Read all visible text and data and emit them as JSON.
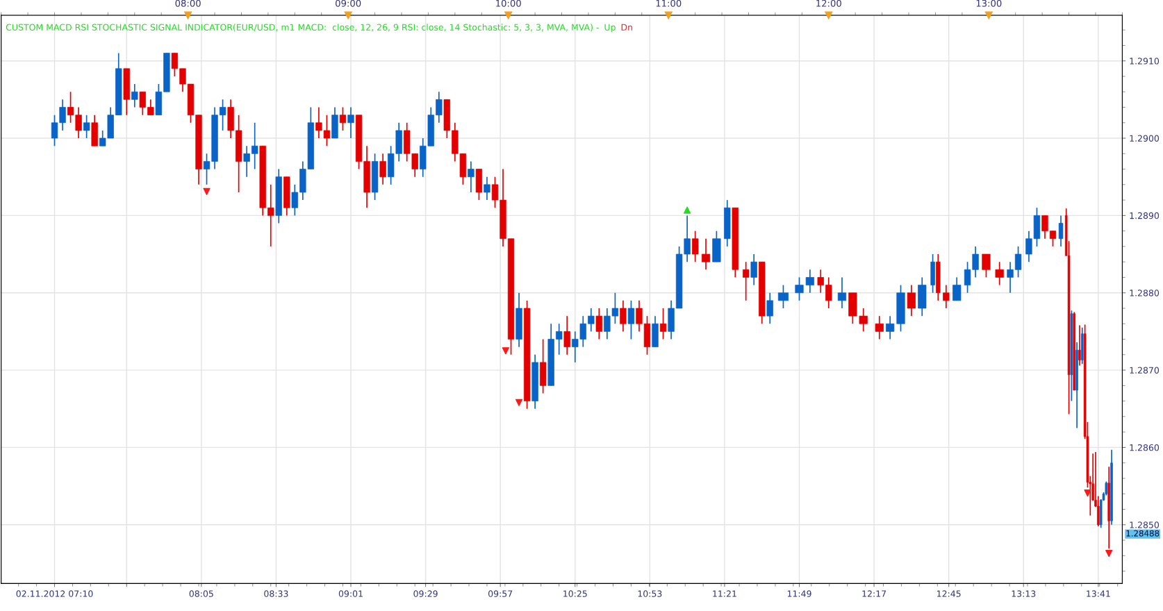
{
  "chart_data": {
    "type": "candlestick",
    "title": "CUSTOM MACD RSI STOCHASTIC SIGNAL INDICATOR(EUR/USD, m1 MACD:  close, 12, 26, 9 RSI: close, 14 Stochastic: 5, 3, 3, MVA, MVA) -",
    "x": [
      "2012-11-02T07:10",
      "2012-11-02T07:13",
      "2012-11-02T07:16",
      "2012-11-02T07:19",
      "2012-11-02T07:22",
      "2012-11-02T07:25",
      "2012-11-02T07:28",
      "2012-11-02T07:31",
      "2012-11-02T07:34",
      "2012-11-02T07:37",
      "2012-11-02T07:40",
      "2012-11-02T07:43",
      "2012-11-02T07:46",
      "2012-11-02T07:49",
      "2012-11-02T07:52",
      "2012-11-02T07:55",
      "2012-11-02T07:58",
      "2012-11-02T08:01",
      "2012-11-02T08:04",
      "2012-11-02T08:07",
      "2012-11-02T08:10",
      "2012-11-02T08:13",
      "2012-11-02T08:16",
      "2012-11-02T08:19",
      "2012-11-02T08:22",
      "2012-11-02T08:25",
      "2012-11-02T08:28",
      "2012-11-02T08:31",
      "2012-11-02T08:34",
      "2012-11-02T08:37",
      "2012-11-02T08:40",
      "2012-11-02T08:43",
      "2012-11-02T08:46",
      "2012-11-02T08:49",
      "2012-11-02T08:52",
      "2012-11-02T08:55",
      "2012-11-02T08:58",
      "2012-11-02T09:01",
      "2012-11-02T09:04",
      "2012-11-02T09:07",
      "2012-11-02T09:10",
      "2012-11-02T09:13",
      "2012-11-02T09:16",
      "2012-11-02T09:19",
      "2012-11-02T09:22",
      "2012-11-02T09:25",
      "2012-11-02T09:28",
      "2012-11-02T09:31",
      "2012-11-02T09:34",
      "2012-11-02T09:37",
      "2012-11-02T09:40",
      "2012-11-02T09:43",
      "2012-11-02T09:46",
      "2012-11-02T09:49",
      "2012-11-02T09:52",
      "2012-11-02T09:55",
      "2012-11-02T09:58",
      "2012-11-02T10:01",
      "2012-11-02T10:04",
      "2012-11-02T10:07",
      "2012-11-02T10:10",
      "2012-11-02T10:13",
      "2012-11-02T10:16",
      "2012-11-02T10:19",
      "2012-11-02T10:22",
      "2012-11-02T10:25",
      "2012-11-02T10:28",
      "2012-11-02T10:31",
      "2012-11-02T10:34",
      "2012-11-02T10:37",
      "2012-11-02T10:40",
      "2012-11-02T10:43",
      "2012-11-02T10:46",
      "2012-11-02T10:49",
      "2012-11-02T10:52",
      "2012-11-02T10:55",
      "2012-11-02T10:58",
      "2012-11-02T11:01",
      "2012-11-02T11:04",
      "2012-11-02T11:07",
      "2012-11-02T11:10",
      "2012-11-02T11:14",
      "2012-11-02T11:18",
      "2012-11-02T11:22",
      "2012-11-02T11:25",
      "2012-11-02T11:29",
      "2012-11-02T11:32",
      "2012-11-02T11:35",
      "2012-11-02T11:38",
      "2012-11-02T11:43",
      "2012-11-02T11:49",
      "2012-11-02T11:53",
      "2012-11-02T11:57",
      "2012-11-02T12:00",
      "2012-11-02T12:05",
      "2012-11-02T12:09",
      "2012-11-02T12:13",
      "2012-11-02T12:19",
      "2012-11-02T12:23",
      "2012-11-02T12:27",
      "2012-11-02T12:31",
      "2012-11-02T12:35",
      "2012-11-02T12:39",
      "2012-11-02T12:41",
      "2012-11-02T12:44",
      "2012-11-02T12:48",
      "2012-11-02T12:52",
      "2012-11-02T12:55",
      "2012-11-02T12:59",
      "2012-11-02T13:04",
      "2012-11-02T13:08",
      "2012-11-02T13:11",
      "2012-11-02T13:15",
      "2012-11-02T13:18",
      "2012-11-02T13:21",
      "2012-11-02T13:24",
      "2012-11-02T13:27",
      "2012-11-02T13:29",
      "2012-11-02T13:30",
      "2012-11-02T13:31",
      "2012-11-02T13:32",
      "2012-11-02T13:33",
      "2012-11-02T13:34",
      "2012-11-02T13:35",
      "2012-11-02T13:36",
      "2012-11-02T13:37",
      "2012-11-02T13:38",
      "2012-11-02T13:39",
      "2012-11-02T13:40",
      "2012-11-02T13:41",
      "2012-11-02T13:42",
      "2012-11-02T13:43",
      "2012-11-02T13:44",
      "2012-11-02T13:45",
      "2012-11-02T13:46"
    ],
    "ohlc": [
      [
        1.29,
        1.2903,
        1.2899,
        1.2902
      ],
      [
        1.2902,
        1.2905,
        1.2901,
        1.2904
      ],
      [
        1.2904,
        1.2906,
        1.2902,
        1.2903
      ],
      [
        1.2903,
        1.2904,
        1.29,
        1.2901
      ],
      [
        1.2901,
        1.2903,
        1.29,
        1.2902
      ],
      [
        1.2902,
        1.2903,
        1.2899,
        1.2899
      ],
      [
        1.2899,
        1.2901,
        1.2899,
        1.29
      ],
      [
        1.29,
        1.2904,
        1.29,
        1.2903
      ],
      [
        1.2903,
        1.2911,
        1.2903,
        1.2909
      ],
      [
        1.2909,
        1.2909,
        1.2903,
        1.2905
      ],
      [
        1.2905,
        1.2907,
        1.2904,
        1.2906
      ],
      [
        1.2906,
        1.2906,
        1.2903,
        1.2904
      ],
      [
        1.2904,
        1.2905,
        1.2903,
        1.2903
      ],
      [
        1.2903,
        1.2907,
        1.2903,
        1.2906
      ],
      [
        1.2906,
        1.2911,
        1.2906,
        1.2911
      ],
      [
        1.2911,
        1.2911,
        1.2908,
        1.2909
      ],
      [
        1.2909,
        1.2909,
        1.2906,
        1.2907
      ],
      [
        1.2907,
        1.2907,
        1.2902,
        1.2903
      ],
      [
        1.2903,
        1.2903,
        1.2894,
        1.2896
      ],
      [
        1.2896,
        1.2898,
        1.2894,
        1.2897
      ],
      [
        1.2897,
        1.2904,
        1.2896,
        1.2903
      ],
      [
        1.2903,
        1.2905,
        1.2901,
        1.2904
      ],
      [
        1.2904,
        1.2905,
        1.29,
        1.2901
      ],
      [
        1.2901,
        1.2903,
        1.2893,
        1.2897
      ],
      [
        1.2897,
        1.2899,
        1.2895,
        1.2898
      ],
      [
        1.2898,
        1.2902,
        1.2896,
        1.2899
      ],
      [
        1.2899,
        1.2899,
        1.289,
        1.2891
      ],
      [
        1.2891,
        1.2894,
        1.2886,
        1.289
      ],
      [
        1.289,
        1.2896,
        1.2889,
        1.2895
      ],
      [
        1.2895,
        1.2895,
        1.289,
        1.2891
      ],
      [
        1.2891,
        1.2894,
        1.289,
        1.2893
      ],
      [
        1.2893,
        1.2897,
        1.2892,
        1.2896
      ],
      [
        1.2896,
        1.2904,
        1.2896,
        1.2902
      ],
      [
        1.2902,
        1.2904,
        1.29,
        1.2901
      ],
      [
        1.2901,
        1.2903,
        1.2899,
        1.29
      ],
      [
        1.29,
        1.2904,
        1.29,
        1.2903
      ],
      [
        1.2903,
        1.2904,
        1.2901,
        1.2902
      ],
      [
        1.2902,
        1.2904,
        1.29,
        1.2903
      ],
      [
        1.2903,
        1.2903,
        1.2896,
        1.2897
      ],
      [
        1.2897,
        1.2899,
        1.2891,
        1.2893
      ],
      [
        1.2893,
        1.2898,
        1.2892,
        1.2897
      ],
      [
        1.2897,
        1.2898,
        1.2894,
        1.2895
      ],
      [
        1.2895,
        1.2899,
        1.2894,
        1.2898
      ],
      [
        1.2898,
        1.2902,
        1.2897,
        1.2901
      ],
      [
        1.2901,
        1.2902,
        1.2897,
        1.2898
      ],
      [
        1.2898,
        1.2898,
        1.2895,
        1.2896
      ],
      [
        1.2896,
        1.29,
        1.2895,
        1.2899
      ],
      [
        1.2899,
        1.2904,
        1.2899,
        1.2903
      ],
      [
        1.2903,
        1.2906,
        1.2902,
        1.2905
      ],
      [
        1.2905,
        1.2905,
        1.29,
        1.2901
      ],
      [
        1.2901,
        1.2902,
        1.2897,
        1.2898
      ],
      [
        1.2898,
        1.2898,
        1.2894,
        1.2895
      ],
      [
        1.2895,
        1.2897,
        1.2893,
        1.2896
      ],
      [
        1.2896,
        1.2896,
        1.2892,
        1.2893
      ],
      [
        1.2893,
        1.2895,
        1.2892,
        1.2894
      ],
      [
        1.2894,
        1.2895,
        1.2891,
        1.2892
      ],
      [
        1.2892,
        1.2896,
        1.2886,
        1.2887
      ],
      [
        1.2887,
        1.2887,
        1.2872,
        1.2874
      ],
      [
        1.2874,
        1.288,
        1.2873,
        1.2878
      ],
      [
        1.2878,
        1.2879,
        1.2865,
        1.2866
      ],
      [
        1.2866,
        1.2872,
        1.2865,
        1.2871
      ],
      [
        1.2871,
        1.2874,
        1.2867,
        1.2868
      ],
      [
        1.2868,
        1.2876,
        1.2868,
        1.2874
      ],
      [
        1.2874,
        1.2876,
        1.2872,
        1.2875
      ],
      [
        1.2875,
        1.2877,
        1.2872,
        1.2873
      ],
      [
        1.2873,
        1.2875,
        1.2871,
        1.2874
      ],
      [
        1.2874,
        1.2877,
        1.2873,
        1.2876
      ],
      [
        1.2876,
        1.2878,
        1.2875,
        1.2877
      ],
      [
        1.2877,
        1.2878,
        1.2874,
        1.2875
      ],
      [
        1.2875,
        1.2878,
        1.2874,
        1.2877
      ],
      [
        1.2877,
        1.288,
        1.2876,
        1.2878
      ],
      [
        1.2878,
        1.2879,
        1.2875,
        1.2876
      ],
      [
        1.2876,
        1.2879,
        1.2874,
        1.2878
      ],
      [
        1.2878,
        1.2879,
        1.2875,
        1.2876
      ],
      [
        1.2876,
        1.2877,
        1.2872,
        1.2873
      ],
      [
        1.2873,
        1.2877,
        1.2873,
        1.2876
      ],
      [
        1.2876,
        1.2878,
        1.2874,
        1.2875
      ],
      [
        1.2875,
        1.2879,
        1.2874,
        1.2878
      ],
      [
        1.2878,
        1.2886,
        1.2878,
        1.2885
      ],
      [
        1.2885,
        1.289,
        1.2884,
        1.2887
      ],
      [
        1.2887,
        1.2888,
        1.2884,
        1.2885
      ],
      [
        1.2885,
        1.2887,
        1.2883,
        1.2884
      ],
      [
        1.2884,
        1.2888,
        1.2884,
        1.2887
      ],
      [
        1.2887,
        1.2892,
        1.2886,
        1.2891
      ],
      [
        1.2891,
        1.2891,
        1.2882,
        1.2883
      ],
      [
        1.2883,
        1.2884,
        1.2879,
        1.2882
      ],
      [
        1.2882,
        1.2885,
        1.2881,
        1.2884
      ],
      [
        1.2884,
        1.2884,
        1.2876,
        1.2877
      ],
      [
        1.2877,
        1.288,
        1.2876,
        1.2879
      ],
      [
        1.2879,
        1.2881,
        1.2878,
        1.288
      ],
      [
        1.288,
        1.2882,
        1.2879,
        1.2881
      ],
      [
        1.2881,
        1.2883,
        1.288,
        1.2882
      ],
      [
        1.2882,
        1.2883,
        1.288,
        1.2881
      ],
      [
        1.2881,
        1.2882,
        1.2878,
        1.2879
      ],
      [
        1.2879,
        1.2882,
        1.2878,
        1.288
      ],
      [
        1.288,
        1.288,
        1.2876,
        1.2877
      ],
      [
        1.2877,
        1.2878,
        1.2875,
        1.2876
      ],
      [
        1.2876,
        1.2877,
        1.2874,
        1.2875
      ],
      [
        1.2875,
        1.2877,
        1.2874,
        1.2876
      ],
      [
        1.2876,
        1.2881,
        1.2875,
        1.288
      ],
      [
        1.288,
        1.2881,
        1.2877,
        1.2878
      ],
      [
        1.2878,
        1.2882,
        1.2877,
        1.2881
      ],
      [
        1.2881,
        1.2885,
        1.288,
        1.2884
      ],
      [
        1.2884,
        1.2885,
        1.2879,
        1.288
      ],
      [
        1.288,
        1.2881,
        1.2878,
        1.2879
      ],
      [
        1.2879,
        1.2882,
        1.2879,
        1.2881
      ],
      [
        1.2881,
        1.2884,
        1.288,
        1.2883
      ],
      [
        1.2883,
        1.2886,
        1.2882,
        1.2885
      ],
      [
        1.2885,
        1.2885,
        1.2882,
        1.2883
      ],
      [
        1.2883,
        1.2884,
        1.2881,
        1.2882
      ],
      [
        1.2882,
        1.2884,
        1.288,
        1.2883
      ],
      [
        1.2883,
        1.2886,
        1.2882,
        1.2885
      ],
      [
        1.2885,
        1.2888,
        1.2884,
        1.2887
      ],
      [
        1.2887,
        1.2891,
        1.2886,
        1.289
      ],
      [
        1.289,
        1.289,
        1.2887,
        1.2888
      ],
      [
        1.2888,
        1.2888,
        1.2886,
        1.2887
      ],
      [
        1.2887,
        1.289,
        1.2886,
        1.2889
      ],
      [
        1.289,
        1.28909,
        1.28848,
        1.28848
      ],
      [
        1.28848,
        1.28867,
        1.28643,
        1.28694
      ],
      [
        1.28694,
        1.28777,
        1.2866,
        1.28773
      ],
      [
        1.28773,
        1.28775,
        1.28674,
        1.28674
      ],
      [
        1.28674,
        1.28736,
        1.28625,
        1.28726
      ],
      [
        1.28726,
        1.28758,
        1.28706,
        1.28713
      ],
      [
        1.28713,
        1.28755,
        1.28708,
        1.28747
      ],
      [
        1.28747,
        1.28759,
        1.28611,
        1.28614
      ],
      [
        1.28614,
        1.28633,
        1.28548,
        1.28555
      ],
      [
        1.28555,
        1.28563,
        1.28512,
        1.28553
      ],
      [
        1.28553,
        1.28592,
        1.28531,
        1.28532
      ],
      [
        1.28532,
        1.28594,
        1.28523,
        1.28524
      ],
      [
        1.28524,
        1.28537,
        1.28498,
        1.285
      ],
      [
        1.285,
        1.28533,
        1.28496,
        1.28532
      ],
      [
        1.28532,
        1.28542,
        1.28531,
        1.2854
      ],
      [
        1.2854,
        1.28556,
        1.28538,
        1.28554
      ],
      [
        1.28554,
        1.28575,
        1.28469,
        1.28505
      ],
      [
        1.28505,
        1.28597,
        1.285,
        1.2858
      ]
    ],
    "colors": [
      "#0a63c6",
      "#0a63c6",
      "#e20000",
      "#e20000",
      "#0a63c6",
      "#e20000",
      "#0a63c6",
      "#0a63c6",
      "#0a63c6",
      "#e20000",
      "#0a63c6",
      "#e20000",
      "#e20000",
      "#0a63c6",
      "#0a63c6",
      "#e20000",
      "#e20000",
      "#e20000",
      "#e20000",
      "#0a63c6",
      "#0a63c6",
      "#0a63c6",
      "#e20000",
      "#e20000",
      "#0a63c6",
      "#0a63c6",
      "#e20000",
      "#e20000",
      "#0a63c6",
      "#e20000",
      "#0a63c6",
      "#0a63c6",
      "#0a63c6",
      "#e20000",
      "#e20000",
      "#0a63c6",
      "#e20000",
      "#0a63c6",
      "#e20000",
      "#e20000",
      "#0a63c6",
      "#e20000",
      "#0a63c6",
      "#0a63c6",
      "#e20000",
      "#e20000",
      "#0a63c6",
      "#0a63c6",
      "#0a63c6",
      "#e20000",
      "#e20000",
      "#e20000",
      "#0a63c6",
      "#e20000",
      "#0a63c6",
      "#e20000",
      "#e20000",
      "#e20000",
      "#0a63c6",
      "#e20000",
      "#0a63c6",
      "#e20000",
      "#0a63c6",
      "#0a63c6",
      "#e20000",
      "#0a63c6",
      "#0a63c6",
      "#0a63c6",
      "#e20000",
      "#0a63c6",
      "#0a63c6",
      "#e20000",
      "#0a63c6",
      "#e20000",
      "#e20000",
      "#0a63c6",
      "#e20000",
      "#0a63c6",
      "#0a63c6",
      "#0a63c6",
      "#e20000",
      "#e20000",
      "#0a63c6",
      "#0a63c6",
      "#e20000",
      "#e20000",
      "#0a63c6",
      "#e20000",
      "#0a63c6",
      "#0a63c6",
      "#0a63c6",
      "#0a63c6",
      "#e20000",
      "#e20000",
      "#0a63c6",
      "#e20000",
      "#e20000",
      "#e20000",
      "#0a63c6",
      "#0a63c6",
      "#e20000",
      "#0a63c6",
      "#0a63c6",
      "#e20000",
      "#e20000",
      "#0a63c6",
      "#0a63c6",
      "#0a63c6",
      "#e20000",
      "#e20000",
      "#0a63c6",
      "#0a63c6",
      "#0a63c6",
      "#0a63c6",
      "#e20000",
      "#e20000",
      "#0a63c6",
      "#e20000",
      "#e20000",
      "#0a63c6",
      "#e20000",
      "#0a63c6",
      "#e20000",
      "#0a63c6",
      "#e20000",
      "#e20000",
      "#e20000",
      "#e20000",
      "#e20000",
      "#e20000",
      "#0a63c6",
      "#0a63c6",
      "#0a63c6",
      "#e20000",
      "#0a63c6"
    ],
    "series": [
      {
        "type": "scatter",
        "name": "Up",
        "color": "#22dd22",
        "marker": "triangle",
        "x": [
          "2012-11-02T11:07"
        ],
        "values": [
          1.28907
        ]
      },
      {
        "type": "scatter",
        "name": "Dn",
        "color": "#ff1a1a",
        "marker": "triangle_down",
        "x": [
          "2012-11-02T08:07",
          "2012-11-02T09:59",
          "2012-11-02T10:04",
          "2012-11-02T13:37",
          "2012-11-02T13:45"
        ],
        "values": [
          1.28931,
          1.28725,
          1.28658,
          1.28541,
          1.28463
        ]
      }
    ],
    "xlim": [
      "2012-11-02T06:50",
      "2012-11-02T13:50"
    ],
    "xticks": [
      {
        "value": "2012-11-02T07:10",
        "label": "02.11.2012 07:10"
      },
      {
        "value": "2012-11-02T07:37",
        "label": null
      },
      {
        "value": "2012-11-02T08:05",
        "label": "08:05"
      },
      {
        "value": "2012-11-02T08:33",
        "label": "08:33"
      },
      {
        "value": "2012-11-02T09:01",
        "label": "09:01"
      },
      {
        "value": "2012-11-02T09:29",
        "label": "09:29"
      },
      {
        "value": "2012-11-02T09:57",
        "label": "09:57"
      },
      {
        "value": "2012-11-02T10:25",
        "label": "10:25"
      },
      {
        "value": "2012-11-02T10:53",
        "label": "10:53"
      },
      {
        "value": "2012-11-02T11:21",
        "label": "11:21"
      },
      {
        "value": "2012-11-02T11:49",
        "label": "11:49"
      },
      {
        "value": "2012-11-02T12:17",
        "label": "12:17"
      },
      {
        "value": "2012-11-02T12:45",
        "label": "12:45"
      },
      {
        "value": "2012-11-02T13:13",
        "label": "13:13"
      },
      {
        "value": "2012-11-02T13:41",
        "label": "13:41"
      }
    ],
    "x2lim": [
      "2012-11-02T06:50",
      "2012-11-02T13:50"
    ],
    "x2ticks": [
      {
        "value": "2012-11-02T08:00",
        "label": "08:00"
      },
      {
        "value": "2012-11-02T09:00",
        "label": "09:00"
      },
      {
        "value": "2012-11-02T10:00",
        "label": "10:00"
      },
      {
        "value": "2012-11-02T11:00",
        "label": "11:00"
      },
      {
        "value": "2012-11-02T12:00",
        "label": "12:00"
      },
      {
        "value": "2012-11-02T13:00",
        "label": "13:00"
      }
    ],
    "ylim": [
      1.28424,
      1.29159
    ],
    "yticks": [
      {
        "value": 1.285,
        "label": "1.2850"
      },
      {
        "value": 1.286,
        "label": "1.2860"
      },
      {
        "value": 1.287,
        "label": "1.2870"
      },
      {
        "value": 1.288,
        "label": "1.2880"
      },
      {
        "value": 1.289,
        "label": "1.2890"
      },
      {
        "value": 1.29,
        "label": "1.2900"
      },
      {
        "value": 1.291,
        "label": "1.2910"
      }
    ],
    "annotations": [
      {
        "text": "1.28488",
        "x": "2012-11-02T13:46",
        "y": 1.28488
      }
    ],
    "grid": true,
    "legend": false
  }
}
